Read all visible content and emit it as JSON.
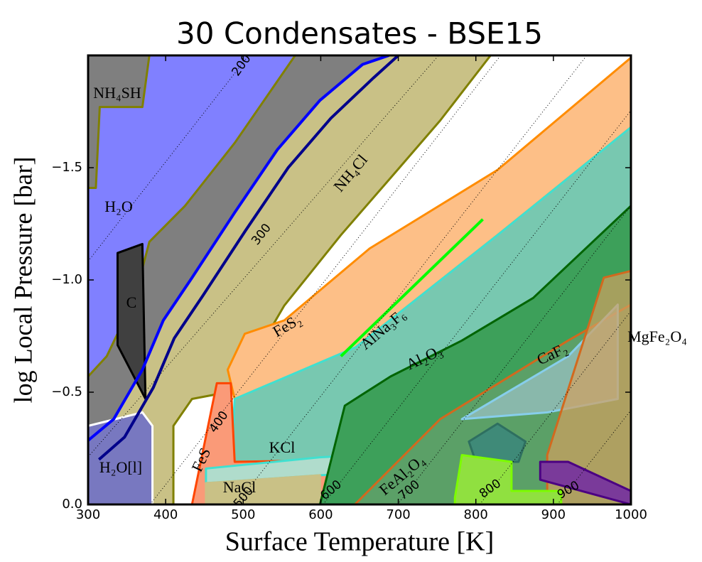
{
  "chart_data": {
    "type": "area",
    "title": "30 Condensates - BSE15",
    "xlabel": "Surface Temperature [K]",
    "ylabel": "log Local Pressure [bar]",
    "xlim": [
      300,
      1000
    ],
    "ylim": [
      0,
      -2.0
    ],
    "xticks": [
      300,
      400,
      500,
      600,
      700,
      800,
      900,
      1000
    ],
    "yticks": [
      {
        "value": 0,
        "label": "0.0"
      },
      {
        "value": -0.5,
        "label": "−0.5"
      },
      {
        "value": -1.0,
        "label": "−1.0"
      },
      {
        "value": -1.5,
        "label": "−1.5"
      }
    ],
    "regions": [
      {
        "color": "#c9c186",
        "edge": "#808000",
        "opacity": 1,
        "x": [
          300,
          410,
          410,
          434,
          489,
          553,
          626,
          699,
          754,
          819,
          300
        ],
        "y": [
          0,
          0,
          -0.35,
          -0.47,
          -0.506,
          -0.886,
          -1.2,
          -1.49,
          -1.71,
          -2.0,
          -2.0
        ]
      },
      {
        "color": "#7f7f7f",
        "edge": "#808000",
        "opacity": 1,
        "x": [
          300,
          688,
          654,
          599,
          544,
          489,
          434,
          397,
          370,
          333,
          300
        ],
        "y": [
          -2.0,
          -2.0,
          -1.96,
          -1.8,
          -1.58,
          -1.3,
          -1.01,
          -0.82,
          -0.6,
          -0.38,
          -0.285
        ]
      },
      {
        "color": "#8080ff",
        "edge": "#808000",
        "opacity": 1,
        "x": [
          379,
          567,
          489,
          425,
          379,
          360,
          324,
          300,
          300,
          310,
          315,
          370
        ],
        "y": [
          -2.0,
          -2.0,
          -1.61,
          -1.33,
          -1.17,
          -0.92,
          -0.66,
          -0.57,
          -1.41,
          -1.41,
          -1.77,
          -1.77
        ]
      },
      {
        "color": "#7878c0",
        "edge": "#ffffff",
        "opacity": 1,
        "x": [
          300,
          370,
          383,
          383,
          300
        ],
        "y": [
          -0.35,
          -0.41,
          -0.35,
          0,
          0
        ]
      },
      {
        "color": "#404040",
        "edge": "#000000",
        "opacity": 1,
        "x": [
          338,
          370,
          374,
          338
        ],
        "y": [
          -1.12,
          -1.16,
          -0.47,
          -0.71
        ]
      },
      {
        "color": "#fdbf87",
        "edge": "#ff8c00",
        "opacity": 1,
        "x": [
          480,
          502,
          553,
          663,
          828,
          1000,
          1000,
          828,
          645,
          507,
          489
        ],
        "y": [
          -0.6,
          -0.76,
          -0.82,
          -1.14,
          -1.49,
          -1.99,
          -1.68,
          -1.2,
          -0.7,
          -0.44,
          -0.47
        ]
      },
      {
        "color": "#78c8b0",
        "edge": "#40e0d0",
        "opacity": 1,
        "x": [
          489,
          645,
          828,
          1000,
          1000,
          490,
          485
        ],
        "y": [
          -0.47,
          -0.7,
          -1.2,
          -1.68,
          0,
          0,
          -0.2
        ]
      },
      {
        "color": "#fa9a78",
        "edge": "#ff4500",
        "opacity": 1,
        "x": [
          434,
          466,
          484,
          489,
          1000,
          1000
        ],
        "y": [
          0,
          -0.54,
          -0.54,
          -0.19,
          -0.22,
          0
        ]
      },
      {
        "color": "#b0dccc",
        "edge": "#40e0d0",
        "opacity": 1,
        "x": [
          452,
          599,
          1000,
          1000,
          599,
          452
        ],
        "y": [
          -0.16,
          -0.21,
          -0.28,
          -0.19,
          -0.13,
          -0.095
        ]
      },
      {
        "color": "#c9c186",
        "edge": "#c9c186",
        "opacity": 1,
        "x": [
          452,
          599,
          599,
          452
        ],
        "y": [
          -0.095,
          -0.13,
          0,
          0
        ]
      },
      {
        "color": "#3da05a",
        "edge": "#006400",
        "opacity": 1,
        "x": [
          599,
          631,
          690,
          782,
          874,
          1000,
          1000
        ],
        "y": [
          0,
          -0.44,
          -0.57,
          -0.73,
          -0.92,
          -1.33,
          0
        ]
      },
      {
        "color": "#6fa070",
        "edge": "#d2691e",
        "opacity": 0.6,
        "x": [
          644,
          754,
          919,
          1000,
          1000
        ],
        "y": [
          0,
          -0.38,
          -0.73,
          -0.89,
          0
        ]
      },
      {
        "color": "#a8c8d8",
        "edge": "#87ceeb",
        "opacity": 0.6,
        "x": [
          782,
          919,
          983,
          983,
          892
        ],
        "y": [
          -0.38,
          -0.66,
          -0.89,
          -0.47,
          -0.41
        ]
      },
      {
        "color": "#d2a060",
        "edge": "#d2691e",
        "opacity": 0.7,
        "x": [
          892,
          965,
          1000,
          1000,
          892
        ],
        "y": [
          -0.22,
          -1.01,
          -1.04,
          0,
          0
        ]
      },
      {
        "color": "#3f8a78",
        "edge": "#2e6f60",
        "opacity": 1,
        "x": [
          791,
          828,
          864,
          855,
          800
        ],
        "y": [
          -0.28,
          -0.36,
          -0.28,
          -0.19,
          -0.19
        ]
      },
      {
        "color": "#90e040",
        "edge": "#7cfc00",
        "opacity": 1,
        "x": [
          773,
          782,
          846,
          846,
          910,
          910,
          773
        ],
        "y": [
          -0.03,
          -0.22,
          -0.19,
          -0.06,
          -0.06,
          0,
          0
        ]
      },
      {
        "color": "#7a3a9a",
        "edge": "#4b0082",
        "opacity": 1,
        "x": [
          883,
          919,
          1000,
          1000,
          883
        ],
        "y": [
          -0.19,
          -0.19,
          -0.06,
          0,
          -0.11
        ]
      }
    ],
    "lines": [
      {
        "color": "#0000ff",
        "x": [
          300,
          333,
          370,
          397,
          434,
          489,
          544,
          599,
          654,
          688
        ],
        "y": [
          -0.285,
          -0.38,
          -0.6,
          -0.82,
          -1.01,
          -1.3,
          -1.58,
          -1.8,
          -1.96,
          -2.0
        ]
      },
      {
        "color": "#00008b",
        "x": [
          314,
          347,
          384,
          411,
          448,
          503,
          558,
          613,
          668,
          700
        ],
        "y": [
          -0.2,
          -0.3,
          -0.52,
          -0.74,
          -0.93,
          -1.22,
          -1.5,
          -1.72,
          -1.9,
          -2.0
        ]
      },
      {
        "color": "#00ff00",
        "x": [
          626,
          809
        ],
        "y": [
          -0.66,
          -1.27
        ]
      }
    ],
    "isotherms": [
      {
        "label": "200",
        "x": [
          300,
          507
        ],
        "y": [
          -1.083,
          -2.0
        ]
      },
      {
        "label": "300",
        "x": [
          300,
          752
        ],
        "y": [
          -0.212,
          -2.0
        ]
      },
      {
        "label": "400",
        "x": [
          380,
          832
        ],
        "y": [
          0,
          -2.0
        ]
      },
      {
        "label": "500",
        "x": [
          491,
          943
        ],
        "y": [
          0,
          -2.0
        ]
      },
      {
        "label": "600",
        "x": [
          603,
          1000
        ],
        "y": [
          0,
          -1.755
        ]
      },
      {
        "label": "700",
        "x": [
          699,
          1000
        ],
        "y": [
          0,
          -1.33
        ]
      },
      {
        "label": "800",
        "x": [
          805,
          1000
        ],
        "y": [
          0,
          -0.862
        ]
      },
      {
        "label": "900",
        "x": [
          905,
          1000
        ],
        "y": [
          0,
          -0.42
        ]
      }
    ],
    "region_labels": [
      "NH₄SH",
      "H₂O",
      "C",
      "H₂O[l]",
      "NH₄Cl",
      "FeS₂",
      "AlNa₃F₆",
      "Al₂O₃",
      "CaF₂",
      "MgFe₂O₄",
      "KCl",
      "FeS",
      "NaCl",
      "FeAl₂O₄"
    ]
  }
}
